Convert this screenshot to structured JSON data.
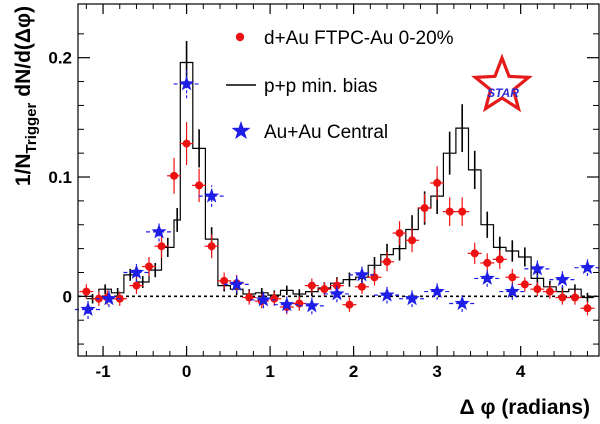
{
  "chart_data": {
    "type": "scatter",
    "xlabel_main": "Δ φ",
    "xlabel_unit": "(radians)",
    "ylabel_main": "1/N",
    "ylabel_sub": "Trigger",
    "ylabel_rest": " dN/d(Δφ)",
    "xlim": [
      -1.3,
      4.95
    ],
    "ylim": [
      -0.05,
      0.245
    ],
    "x_ticks": [
      {
        "value": -1,
        "label": "-1"
      },
      {
        "value": 0,
        "label": "0"
      },
      {
        "value": 1,
        "label": "1"
      },
      {
        "value": 2,
        "label": "2"
      },
      {
        "value": 3,
        "label": "3"
      },
      {
        "value": 4,
        "label": "4"
      }
    ],
    "y_ticks": [
      {
        "value": 0,
        "label": "0"
      },
      {
        "value": 0.1,
        "label": "0.1"
      },
      {
        "value": 0.2,
        "label": "0.2"
      }
    ],
    "zero_line": true,
    "legend_placement": "top-right",
    "logo_text": "STAR",
    "series": [
      {
        "name": "d+Au FTPC-Au 0-20%",
        "kind": "points",
        "color": "#ee1111",
        "x": [
          -1.2,
          -1.05,
          -0.95,
          -0.8,
          -0.6,
          -0.45,
          -0.3,
          -0.15,
          0.0,
          0.15,
          0.3,
          0.45,
          0.6,
          0.75,
          0.9,
          1.05,
          1.2,
          1.35,
          1.5,
          1.65,
          1.8,
          1.95,
          2.1,
          2.25,
          2.4,
          2.55,
          2.7,
          2.85,
          3.0,
          3.15,
          3.3,
          3.45,
          3.6,
          3.75,
          3.9,
          4.05,
          4.2,
          4.35,
          4.5,
          4.65,
          4.8,
          4.95
        ],
        "y": [
          0.004,
          -0.002,
          -0.001,
          -0.002,
          0.009,
          0.025,
          0.042,
          0.101,
          0.128,
          0.093,
          0.042,
          0.013,
          0.011,
          -0.001,
          -0.004,
          -0.002,
          -0.009,
          -0.006,
          0.009,
          0.006,
          0.009,
          -0.007,
          0.008,
          0.016,
          0.029,
          0.053,
          0.047,
          0.074,
          0.095,
          0.071,
          0.071,
          0.036,
          0.028,
          0.031,
          0.016,
          0.01,
          0.006,
          0.004,
          -0.001,
          -0.001,
          -0.01,
          -0.01
        ],
        "err": [
          0.006,
          0.006,
          0.006,
          0.006,
          0.007,
          0.008,
          0.01,
          0.015,
          0.018,
          0.014,
          0.01,
          0.007,
          0.007,
          0.006,
          0.006,
          0.006,
          0.006,
          0.006,
          0.006,
          0.006,
          0.006,
          0.006,
          0.006,
          0.007,
          0.008,
          0.01,
          0.01,
          0.012,
          0.014,
          0.012,
          0.012,
          0.009,
          0.008,
          0.008,
          0.007,
          0.006,
          0.006,
          0.006,
          0.006,
          0.006,
          0.006,
          0.006
        ]
      },
      {
        "name": "p+p min. bias",
        "kind": "histogram",
        "color": "#000000",
        "bin_edges": [
          -1.2,
          -1.05,
          -0.9,
          -0.75,
          -0.6,
          -0.45,
          -0.3,
          -0.15,
          -0.075,
          0.075,
          0.225,
          0.375,
          0.525,
          0.675,
          0.825,
          0.975,
          1.125,
          1.275,
          1.425,
          1.575,
          1.725,
          1.875,
          2.025,
          2.175,
          2.325,
          2.475,
          2.625,
          2.775,
          2.925,
          3.075,
          3.225,
          3.375,
          3.525,
          3.675,
          3.825,
          3.975,
          4.125,
          4.275,
          4.425,
          4.575,
          4.725,
          4.875
        ],
        "values": [
          -0.002,
          0.006,
          0.003,
          0.018,
          0.012,
          0.022,
          0.041,
          0.064,
          0.196,
          0.124,
          0.048,
          0.009,
          0.006,
          0.002,
          0.003,
          0.001,
          0.005,
          0.002,
          0.004,
          0.007,
          0.011,
          0.014,
          0.016,
          0.026,
          0.035,
          0.04,
          0.056,
          0.074,
          0.084,
          0.12,
          0.141,
          0.106,
          0.06,
          0.041,
          0.038,
          0.033,
          0.015,
          0.008,
          0.004,
          0.006,
          -0.001
        ],
        "err": [
          0.004,
          0.004,
          0.004,
          0.005,
          0.005,
          0.006,
          0.008,
          0.01,
          0.018,
          0.016,
          0.01,
          0.005,
          0.005,
          0.004,
          0.004,
          0.004,
          0.004,
          0.004,
          0.004,
          0.005,
          0.005,
          0.006,
          0.006,
          0.007,
          0.009,
          0.01,
          0.012,
          0.014,
          0.015,
          0.018,
          0.02,
          0.016,
          0.011,
          0.009,
          0.009,
          0.008,
          0.006,
          0.005,
          0.004,
          0.004,
          0.004
        ]
      },
      {
        "name": "Au+Au Central",
        "kind": "stars",
        "color": "#1e1ee6",
        "x": [
          -1.18,
          -0.93,
          -0.6,
          -0.33,
          0.0,
          0.3,
          0.6,
          0.92,
          1.2,
          1.5,
          1.8,
          2.1,
          2.4,
          2.7,
          3.0,
          3.3,
          3.6,
          3.9,
          4.2,
          4.5,
          4.8
        ],
        "y": [
          -0.011,
          -0.002,
          0.02,
          0.054,
          0.178,
          0.084,
          0.01,
          -0.003,
          -0.007,
          -0.008,
          0.002,
          0.018,
          0.001,
          -0.002,
          0.004,
          -0.006,
          0.015,
          0.004,
          0.023,
          0.014,
          0.024
        ],
        "err": [
          0.008,
          0.007,
          0.008,
          0.008,
          0.012,
          0.009,
          0.007,
          0.007,
          0.007,
          0.007,
          0.007,
          0.007,
          0.007,
          0.007,
          0.007,
          0.007,
          0.007,
          0.007,
          0.007,
          0.007,
          0.007
        ]
      }
    ]
  }
}
